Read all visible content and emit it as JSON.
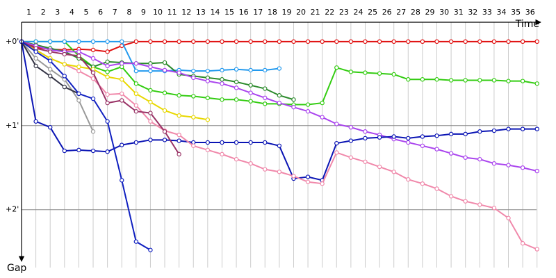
{
  "chart_data": {
    "type": "line",
    "x_label": "Time",
    "y_label": "Gap",
    "x": [
      0,
      1,
      2,
      3,
      4,
      5,
      6,
      7,
      8,
      9,
      10,
      11,
      12,
      13,
      14,
      15,
      16,
      17,
      18,
      19,
      20,
      21,
      22,
      23,
      24,
      25,
      26,
      27,
      28,
      29,
      30,
      31,
      32,
      33,
      34,
      35,
      36
    ],
    "xlim": [
      0,
      36.45
    ],
    "xticks": [
      1,
      2,
      3,
      4,
      5,
      6,
      7,
      8,
      9,
      10,
      11,
      12,
      13,
      14,
      15,
      16,
      17,
      18,
      19,
      20,
      21,
      22,
      23,
      24,
      25,
      26,
      27,
      28,
      29,
      30,
      31,
      32,
      33,
      34,
      35,
      36
    ],
    "ylim": [
      -0.23,
      2.73
    ],
    "yticks": [
      {
        "value": 0,
        "label": "+0'"
      },
      {
        "value": 1,
        "label": "+1'"
      },
      {
        "value": 2,
        "label": "+2'"
      }
    ],
    "grid": true,
    "series": [
      {
        "color": "#e01010",
        "values": [
          0,
          0.07,
          0.09,
          0.1,
          0.09,
          0.1,
          0.12,
          0.05,
          0,
          0,
          0,
          0,
          0,
          0,
          0,
          0,
          0,
          0,
          0,
          0,
          0,
          0,
          0,
          0,
          0,
          0,
          0,
          0,
          0,
          0,
          0,
          0,
          0,
          0,
          0,
          0,
          0
        ]
      },
      {
        "color": "#33cc11",
        "values": [
          0,
          0,
          0,
          0,
          0.17,
          0.3,
          0.36,
          0.3,
          0.5,
          0.58,
          0.61,
          0.64,
          0.65,
          0.67,
          0.69,
          0.69,
          0.71,
          0.74,
          0.74,
          0.75,
          0.75,
          0.73,
          0.31,
          0.36,
          0.37,
          0.38,
          0.39,
          0.45,
          0.45,
          0.45,
          0.46,
          0.46,
          0.46,
          0.46,
          0.47,
          0.47,
          0.5
        ]
      },
      {
        "color": "#2299ee",
        "values": [
          0,
          0,
          0,
          0,
          0,
          0,
          0,
          0,
          0.35,
          0.35,
          0.35,
          0.34,
          0.35,
          0.35,
          0.34,
          0.33,
          0.34,
          0.34,
          0.32,
          null,
          null,
          null,
          null,
          null,
          null,
          null,
          null,
          null,
          null,
          null,
          null,
          null,
          null,
          null,
          null,
          null,
          null
        ]
      },
      {
        "color": "#2a8a2a",
        "values": [
          0,
          0.04,
          0.08,
          0.12,
          0.2,
          0.3,
          0.24,
          0.25,
          0.26,
          0.26,
          0.25,
          0.39,
          0.41,
          0.43,
          0.45,
          0.48,
          0.52,
          0.56,
          0.64,
          0.69,
          null,
          null,
          null,
          null,
          null,
          null,
          null,
          null,
          null,
          null,
          null,
          null,
          null,
          null,
          null,
          null,
          null
        ]
      },
      {
        "color": "#aa44ee",
        "values": [
          0,
          0.05,
          0.1,
          0.12,
          0.12,
          0.2,
          0.29,
          0.26,
          0.26,
          0.3,
          0.34,
          0.37,
          0.43,
          0.47,
          0.5,
          0.55,
          0.61,
          0.67,
          0.73,
          0.78,
          0.83,
          0.9,
          0.98,
          1.02,
          1.07,
          1.11,
          1.16,
          1.2,
          1.24,
          1.28,
          1.33,
          1.38,
          1.4,
          1.45,
          1.47,
          1.5,
          1.54
        ]
      },
      {
        "color": "#0a14b4",
        "values": [
          0,
          0.95,
          1.02,
          1.3,
          1.29,
          1.3,
          1.31,
          1.23,
          1.2,
          1.17,
          1.17,
          1.18,
          1.2,
          1.2,
          1.2,
          1.2,
          1.2,
          1.2,
          1.24,
          1.63,
          1.61,
          1.65,
          1.21,
          1.18,
          1.15,
          1.14,
          1.13,
          1.15,
          1.13,
          1.12,
          1.1,
          1.1,
          1.07,
          1.06,
          1.04,
          1.04,
          1.04
        ]
      },
      {
        "color": "#f088aa",
        "values": [
          0,
          0.1,
          0.2,
          0.27,
          0.35,
          0.44,
          0.63,
          0.62,
          0.76,
          0.95,
          1.06,
          1.11,
          1.24,
          1.29,
          1.34,
          1.4,
          1.45,
          1.52,
          1.55,
          1.6,
          1.67,
          1.69,
          1.32,
          1.38,
          1.43,
          1.49,
          1.55,
          1.64,
          1.69,
          1.75,
          1.84,
          1.9,
          1.94,
          1.98,
          2.1,
          2.4,
          2.47
        ]
      },
      {
        "color": "#e8d800",
        "values": [
          0,
          0.1,
          0.2,
          0.27,
          0.3,
          0.33,
          0.42,
          0.45,
          0.62,
          0.72,
          0.82,
          0.88,
          0.9,
          0.93,
          null,
          null,
          null,
          null,
          null,
          null,
          null,
          null,
          null,
          null,
          null,
          null,
          null,
          null,
          null,
          null,
          null,
          null,
          null,
          null,
          null,
          null,
          null
        ]
      },
      {
        "color": "#999999",
        "values": [
          0,
          0.2,
          0.33,
          0.45,
          0.7,
          1.07,
          null,
          null,
          null,
          null,
          null,
          null,
          null,
          null,
          null,
          null,
          null,
          null,
          null,
          null,
          null,
          null,
          null,
          null,
          null,
          null,
          null,
          null,
          null,
          null,
          null,
          null,
          null,
          null,
          null,
          null,
          null
        ]
      },
      {
        "color": "#333344",
        "values": [
          0,
          0.29,
          0.41,
          0.54,
          0.62,
          null,
          null,
          null,
          null,
          null,
          null,
          null,
          null,
          null,
          null,
          null,
          null,
          null,
          null,
          null,
          null,
          null,
          null,
          null,
          null,
          null,
          null,
          null,
          null,
          null,
          null,
          null,
          null,
          null,
          null,
          null,
          null
        ]
      },
      {
        "color": "#993366",
        "values": [
          0,
          0.08,
          0.12,
          0.15,
          0.17,
          0.37,
          0.73,
          0.7,
          0.83,
          0.85,
          1.07,
          1.34,
          null,
          null,
          null,
          null,
          null,
          null,
          null,
          null,
          null,
          null,
          null,
          null,
          null,
          null,
          null,
          null,
          null,
          null,
          null,
          null,
          null,
          null,
          null,
          null,
          null
        ]
      },
      {
        "color": "#1020c0",
        "values": [
          0,
          0.12,
          0.23,
          0.41,
          0.62,
          0.68,
          0.95,
          1.65,
          2.38,
          2.48,
          null,
          null,
          null,
          null,
          null,
          null,
          null,
          null,
          null,
          null,
          null,
          null,
          null,
          null,
          null,
          null,
          null,
          null,
          null,
          null,
          null,
          null,
          null,
          null,
          null,
          null,
          null
        ]
      }
    ]
  }
}
